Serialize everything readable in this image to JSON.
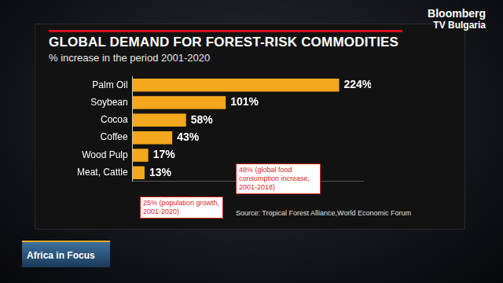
{
  "chart_data": {
    "type": "bar",
    "orientation": "horizontal",
    "title": "GLOBAL DEMAND FOR FOREST-RISK COMMODITIES",
    "subtitle": "% increase in the period 2001-2020",
    "categories": [
      "Palm Oil",
      "Soybean",
      "Cocoa",
      "Coffee",
      "Wood Pulp",
      "Meat, Cattle"
    ],
    "values": [
      224,
      101,
      58,
      43,
      17,
      13
    ],
    "value_labels": [
      "224%",
      "101%",
      "58%",
      "43%",
      "17%",
      "13%"
    ],
    "data_labels": true,
    "color": "#f4a81d",
    "xlim": [
      0,
      250
    ],
    "tick_labels": "y",
    "grid": false,
    "annotations": [
      "48% (global food consumption increase, 2001-2018)",
      "25% (population growth, 2001-2020)"
    ],
    "source": "Source: Tropical Forest Alliance,World Economic Forum",
    "logo": [
      "Bloomberg",
      "TV Bulgaria"
    ],
    "show": "Africa in Focus"
  }
}
